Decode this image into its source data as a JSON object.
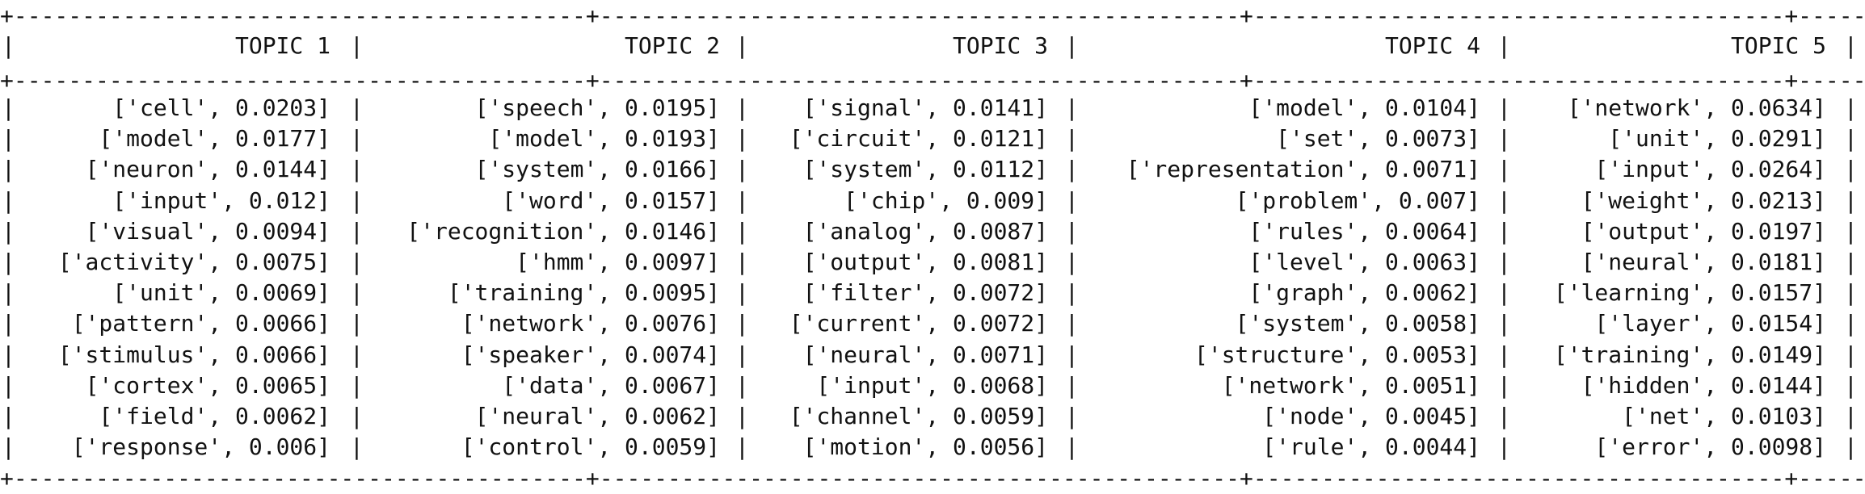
{
  "table": {
    "border_line": "+------------------------------------------+-----------------------------------------------+---------------------------------------+-----------------------------------------------------+------------------------------------------+",
    "columns": [
      {
        "header": "TOPIC 1",
        "rows": [
          "['cell', 0.0203]",
          "['model', 0.0177]",
          "['neuron', 0.0144]",
          "['input', 0.012]",
          "['visual', 0.0094]",
          "['activity', 0.0075]",
          "['unit', 0.0069]",
          "['pattern', 0.0066]",
          "['stimulus', 0.0066]",
          "['cortex', 0.0065]",
          "['field', 0.0062]",
          "['response', 0.006]"
        ]
      },
      {
        "header": "TOPIC 2",
        "rows": [
          "['speech', 0.0195]",
          "['model', 0.0193]",
          "['system', 0.0166]",
          "['word', 0.0157]",
          "['recognition', 0.0146]",
          "['hmm', 0.0097]",
          "['training', 0.0095]",
          "['network', 0.0076]",
          "['speaker', 0.0074]",
          "['data', 0.0067]",
          "['neural', 0.0062]",
          "['control', 0.0059]"
        ]
      },
      {
        "header": "TOPIC 3",
        "rows": [
          "['signal', 0.0141]",
          "['circuit', 0.0121]",
          "['system', 0.0112]",
          "['chip', 0.009]",
          "['analog', 0.0087]",
          "['output', 0.0081]",
          "['filter', 0.0072]",
          "['current', 0.0072]",
          "['neural', 0.0071]",
          "['input', 0.0068]",
          "['channel', 0.0059]",
          "['motion', 0.0056]"
        ]
      },
      {
        "header": "TOPIC 4",
        "rows": [
          "['model', 0.0104]",
          "['set', 0.0073]",
          "['representation', 0.0071]",
          "['problem', 0.007]",
          "['rules', 0.0064]",
          "['level', 0.0063]",
          "['graph', 0.0062]",
          "['system', 0.0058]",
          "['structure', 0.0053]",
          "['network', 0.0051]",
          "['node', 0.0045]",
          "['rule', 0.0044]"
        ]
      },
      {
        "header": "TOPIC 5",
        "rows": [
          "['network', 0.0634]",
          "['unit', 0.0291]",
          "['input', 0.0264]",
          "['weight', 0.0213]",
          "['output', 0.0197]",
          "['neural', 0.0181]",
          "['learning', 0.0157]",
          "['layer', 0.0154]",
          "['training', 0.0149]",
          "['hidden', 0.0144]",
          "['net', 0.0103]",
          "['error', 0.0098]"
        ]
      }
    ],
    "separator": "|"
  }
}
